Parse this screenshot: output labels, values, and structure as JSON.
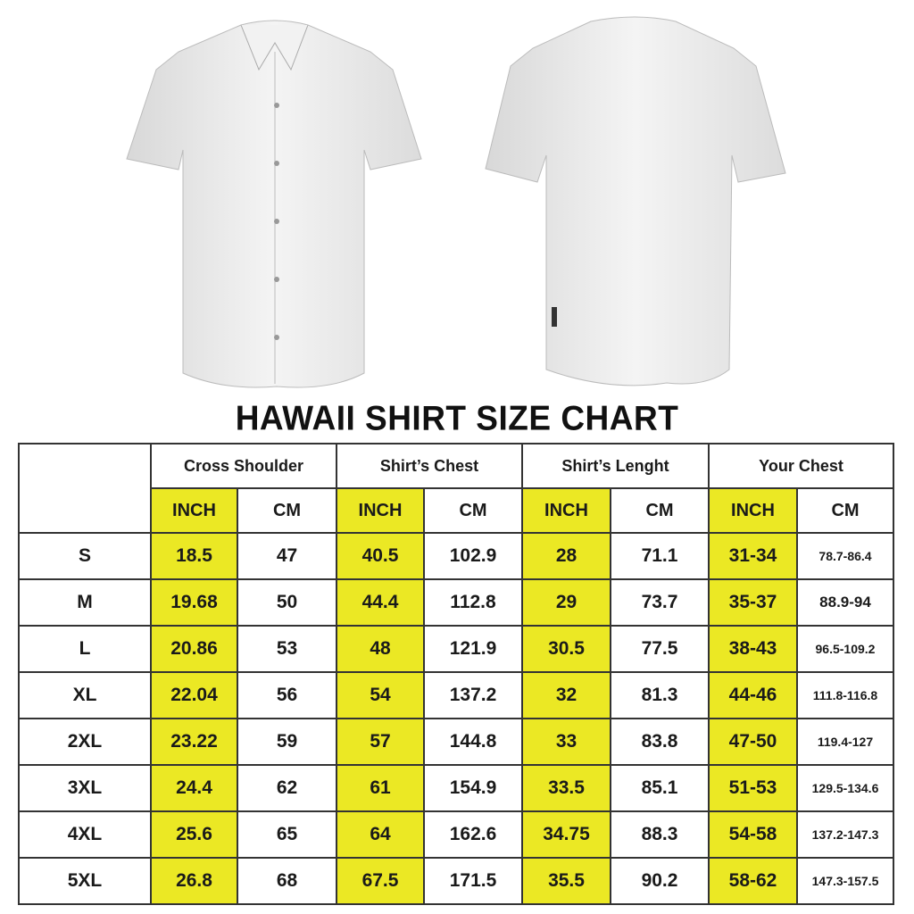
{
  "title": "HAWAII SHIRT SIZE CHART",
  "colors": {
    "highlight": "#ebe824",
    "border": "#333333"
  },
  "groups": [
    "Cross Shoulder",
    "Shirt’s Chest",
    "Shirt’s Lenght",
    "Your Chest"
  ],
  "units": {
    "inch": "INCH",
    "cm": "CM"
  },
  "rows": [
    {
      "size": "S",
      "v": [
        "18.5",
        "47",
        "40.5",
        "102.9",
        "28",
        "71.1",
        "31-34",
        "78.7-86.4"
      ]
    },
    {
      "size": "M",
      "v": [
        "19.68",
        "50",
        "44.4",
        "112.8",
        "29",
        "73.7",
        "35-37",
        "88.9-94"
      ]
    },
    {
      "size": "L",
      "v": [
        "20.86",
        "53",
        "48",
        "121.9",
        "30.5",
        "77.5",
        "38-43",
        "96.5-109.2"
      ]
    },
    {
      "size": "XL",
      "v": [
        "22.04",
        "56",
        "54",
        "137.2",
        "32",
        "81.3",
        "44-46",
        "111.8-116.8"
      ]
    },
    {
      "size": "2XL",
      "v": [
        "23.22",
        "59",
        "57",
        "144.8",
        "33",
        "83.8",
        "47-50",
        "119.4-127"
      ]
    },
    {
      "size": "3XL",
      "v": [
        "24.4",
        "62",
        "61",
        "154.9",
        "33.5",
        "85.1",
        "51-53",
        "129.5-134.6"
      ]
    },
    {
      "size": "4XL",
      "v": [
        "25.6",
        "65",
        "64",
        "162.6",
        "34.75",
        "88.3",
        "54-58",
        "137.2-147.3"
      ]
    },
    {
      "size": "5XL",
      "v": [
        "26.8",
        "68",
        "67.5",
        "171.5",
        "35.5",
        "90.2",
        "58-62",
        "147.3-157.5"
      ]
    }
  ]
}
